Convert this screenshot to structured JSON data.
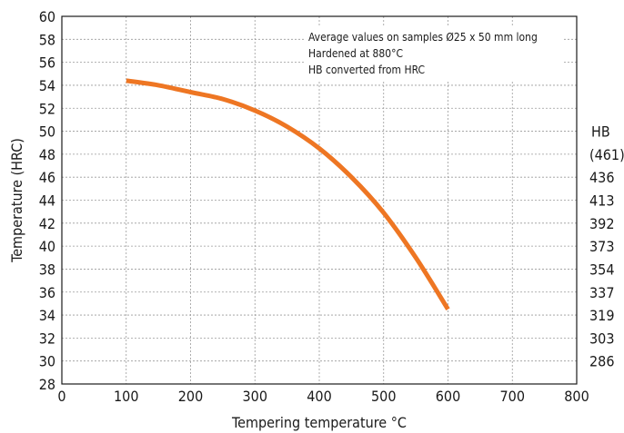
{
  "chart_data": {
    "type": "line",
    "xlabel": "Tempering temperature °C",
    "ylabel": "Temperature (HRC)",
    "xlim": [
      0,
      800
    ],
    "ylim": [
      28,
      60
    ],
    "x_ticks": [
      "0",
      "100",
      "200",
      "300",
      "400",
      "500",
      "600",
      "700",
      "800"
    ],
    "y_ticks": [
      "28",
      "30",
      "32",
      "34",
      "36",
      "38",
      "40",
      "42",
      "44",
      "46",
      "48",
      "50",
      "52",
      "54",
      "56",
      "58",
      "60"
    ],
    "grid": true,
    "annotations": [
      "Average values on samples Ø25 x 50 mm long",
      "Hardened at 880°C",
      "HB converted from HRC"
    ],
    "secondary_axis": {
      "title": "HB",
      "labels": [
        {
          "hrc": 48,
          "text": "(461)"
        },
        {
          "hrc": 46,
          "text": "436"
        },
        {
          "hrc": 44,
          "text": "413"
        },
        {
          "hrc": 42,
          "text": "392"
        },
        {
          "hrc": 40,
          "text": "373"
        },
        {
          "hrc": 38,
          "text": "354"
        },
        {
          "hrc": 36,
          "text": "337"
        },
        {
          "hrc": 34,
          "text": "319"
        },
        {
          "hrc": 32,
          "text": "303"
        },
        {
          "hrc": 30,
          "text": "286"
        }
      ]
    },
    "series": [
      {
        "color": "#ee7623",
        "x": [
          100,
          150,
          200,
          250,
          300,
          350,
          400,
          450,
          500,
          550,
          600
        ],
        "y": [
          54.4,
          54.0,
          53.4,
          52.8,
          51.8,
          50.4,
          48.5,
          46.0,
          42.9,
          39.0,
          34.5
        ]
      }
    ]
  }
}
